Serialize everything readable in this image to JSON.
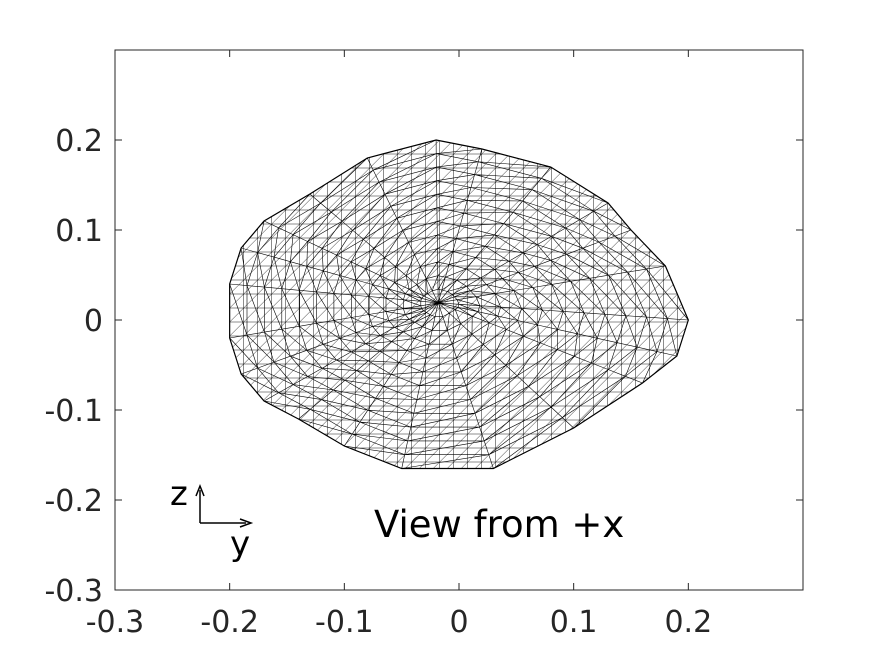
{
  "figure": {
    "annotation": "View from +x",
    "orientation": {
      "vertical_axis": "z",
      "horizontal_axis": "y"
    }
  },
  "axes": {
    "xlim": [
      -0.3,
      0.3
    ],
    "ylim": [
      -0.3,
      0.3
    ],
    "x_tick_values": [
      -0.3,
      -0.2,
      -0.1,
      0,
      0.1,
      0.2
    ],
    "y_tick_values": [
      -0.3,
      -0.2,
      -0.1,
      0,
      0.1,
      0.2
    ],
    "x_tick_labels": [
      "-0.3",
      "-0.2",
      "-0.1",
      "0",
      "0.1",
      "0.2"
    ],
    "y_tick_labels": [
      "-0.3",
      "-0.2",
      "-0.1",
      "0",
      "0.1",
      "0.2"
    ],
    "box": true,
    "grid": false
  },
  "mesh": {
    "type": "triangulated wireframe",
    "color": "#000000",
    "extent_y": [
      -0.2,
      0.2
    ],
    "extent_z": [
      -0.17,
      0.2
    ],
    "outline_yz": [
      [
        -0.02,
        0.2
      ],
      [
        0.02,
        0.19
      ],
      [
        0.08,
        0.17
      ],
      [
        0.13,
        0.13
      ],
      [
        0.15,
        0.1
      ],
      [
        0.18,
        0.06
      ],
      [
        0.2,
        0.0
      ],
      [
        0.19,
        -0.04
      ],
      [
        0.16,
        -0.07
      ],
      [
        0.1,
        -0.12
      ],
      [
        0.03,
        -0.165
      ],
      [
        -0.05,
        -0.165
      ],
      [
        -0.1,
        -0.14
      ],
      [
        -0.14,
        -0.11
      ],
      [
        -0.17,
        -0.09
      ],
      [
        -0.19,
        -0.06
      ],
      [
        -0.2,
        -0.02
      ],
      [
        -0.2,
        0.04
      ],
      [
        -0.19,
        0.08
      ],
      [
        -0.17,
        0.11
      ],
      [
        -0.13,
        0.14
      ],
      [
        -0.08,
        0.18
      ]
    ]
  }
}
